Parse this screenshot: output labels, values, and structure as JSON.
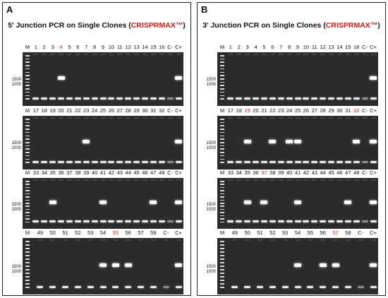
{
  "panels": [
    {
      "letter": "A",
      "title_prefix": "5' Junction PCR on Single Clones (",
      "title_highlight": "CRISPRMAX™",
      "title_suffix": ")",
      "rows": [
        {
          "labels": [
            "M",
            "1",
            "2",
            "3",
            "4",
            "5",
            "6",
            "7",
            "8",
            "9",
            "10",
            "11",
            "12",
            "13",
            "14",
            "15",
            "16",
            "C-",
            "C+"
          ],
          "red": [
            "4"
          ],
          "bands_strong": [
            "4",
            "C+"
          ]
        },
        {
          "labels": [
            "M",
            "17",
            "18",
            "19",
            "20",
            "21",
            "22",
            "23",
            "24",
            "25",
            "26",
            "27",
            "28",
            "29",
            "30",
            "31",
            "32",
            "C-",
            "C+"
          ],
          "red": [],
          "bands_strong": [
            "23",
            "C+"
          ]
        },
        {
          "labels": [
            "M",
            "33",
            "34",
            "35",
            "36",
            "37",
            "38",
            "39",
            "40",
            "41",
            "42",
            "43",
            "44",
            "45",
            "46",
            "47",
            "48",
            "C-",
            "C+"
          ],
          "red": [],
          "bands_strong": [
            "35",
            "41",
            "47",
            "C+"
          ]
        },
        {
          "labels": [
            "M",
            "49",
            "50",
            "51",
            "52",
            "53",
            "54",
            "55",
            "56",
            "57",
            "58",
            "C-",
            "C+"
          ],
          "red": [
            "55"
          ],
          "bands_strong": [
            "54",
            "55",
            "56",
            "C+"
          ]
        }
      ]
    },
    {
      "letter": "B",
      "title_prefix": "3' Junction PCR on Single Clones (",
      "title_highlight": "CRISPRMAX™",
      "title_suffix": ")",
      "rows": [
        {
          "labels": [
            "M",
            "1",
            "2",
            "3",
            "4",
            "5",
            "6",
            "7",
            "8",
            "9",
            "10",
            "11",
            "12",
            "13",
            "14",
            "15",
            "16",
            "C-",
            "C+"
          ],
          "red": [],
          "bands_strong": [
            "C+"
          ]
        },
        {
          "labels": [
            "M",
            "17",
            "18",
            "19",
            "20",
            "21",
            "22",
            "23",
            "24",
            "25",
            "26",
            "27",
            "28",
            "29",
            "30",
            "31",
            "32",
            "C-",
            "C+"
          ],
          "red": [
            "19",
            "32"
          ],
          "bands_strong": [
            "19",
            "22",
            "24",
            "25",
            "32",
            "C+"
          ]
        },
        {
          "labels": [
            "M",
            "33",
            "34",
            "35",
            "36",
            "37",
            "38",
            "39",
            "40",
            "41",
            "42",
            "43",
            "44",
            "45",
            "46",
            "47",
            "48",
            "C-",
            "C+"
          ],
          "red": [
            "37"
          ],
          "bands_strong": [
            "35",
            "37",
            "41",
            "47",
            "C+"
          ]
        },
        {
          "labels": [
            "M",
            "49",
            "50",
            "51",
            "52",
            "53",
            "54",
            "55",
            "56",
            "57",
            "58",
            "C-",
            "C+"
          ],
          "red": [
            "57"
          ],
          "bands_strong": [
            "54",
            "56",
            "57",
            "C+"
          ]
        }
      ]
    }
  ],
  "ladder_marks": [
    "1500",
    "1000"
  ]
}
